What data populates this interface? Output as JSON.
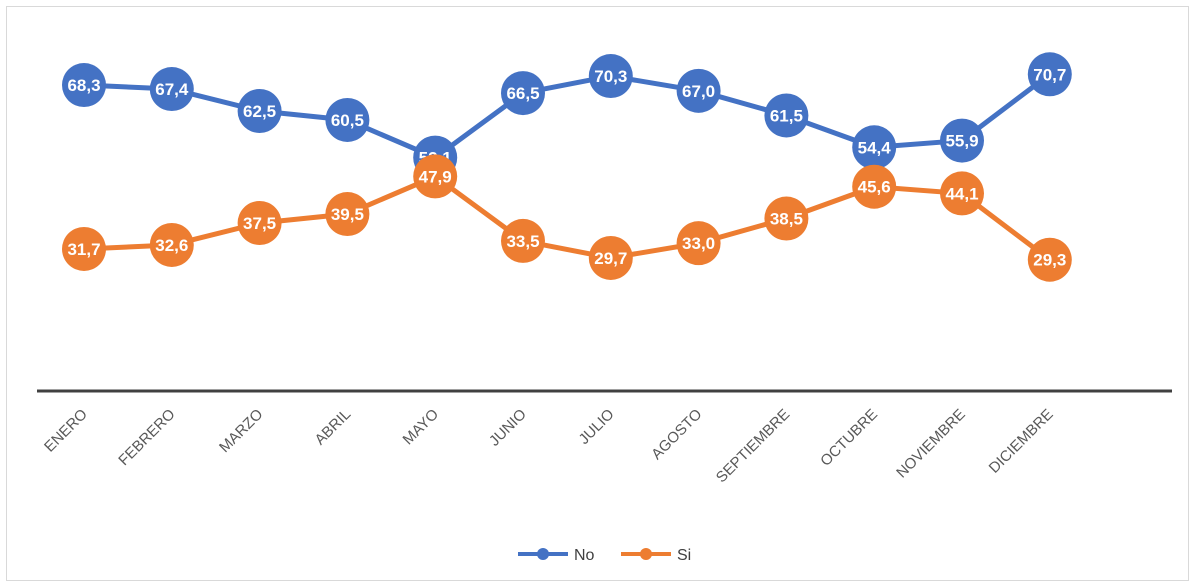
{
  "chart_data": {
    "type": "line",
    "title": "",
    "xlabel": "",
    "ylabel": "",
    "categories": [
      "ENERO",
      "FEBRERO",
      "MARZO",
      "ABRIL",
      "MAYO",
      "JUNIO",
      "JULIO",
      "AGOSTO",
      "SEPTIEMBRE",
      "OCTUBRE",
      "NOVIEMBRE",
      "DICIEMBRE"
    ],
    "series": [
      {
        "name": "No",
        "color": "#4472c4",
        "values": [
          68.3,
          67.4,
          62.5,
          60.5,
          52.1,
          66.5,
          70.3,
          67.0,
          61.5,
          54.4,
          55.9,
          70.7
        ],
        "labels": [
          "68,3",
          "67,4",
          "62,5",
          "60,5",
          "52,1",
          "66,5",
          "70,3",
          "67,0",
          "61,5",
          "54,4",
          "55,9",
          "70,7"
        ]
      },
      {
        "name": "Si",
        "color": "#ed7d31",
        "values": [
          31.7,
          32.6,
          37.5,
          39.5,
          47.9,
          33.5,
          29.7,
          33.0,
          38.5,
          45.6,
          44.1,
          29.3
        ],
        "labels": [
          "31,7",
          "32,6",
          "37,5",
          "39,5",
          "47,9",
          "33,5",
          "29,7",
          "33,0",
          "38,5",
          "45,6",
          "44,1",
          "29,3"
        ]
      }
    ],
    "ylim": [
      0,
      80
    ],
    "grid": false,
    "data_labels": true,
    "legend": "bottom-center",
    "axis_color": "#404040"
  }
}
